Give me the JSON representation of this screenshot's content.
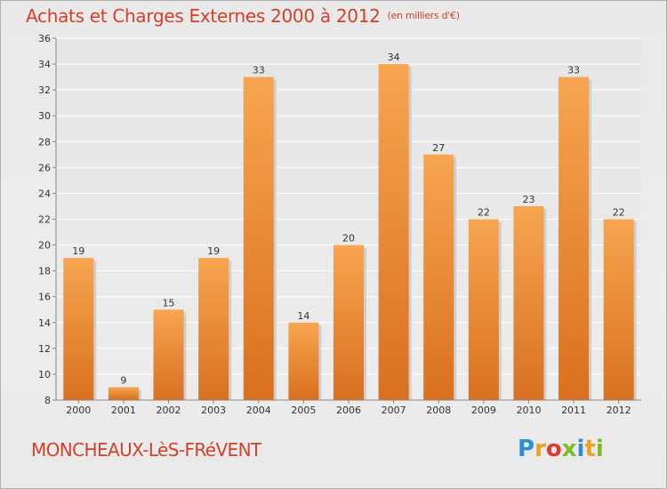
{
  "header": {
    "title": "Achats et Charges Externes 2000 à 2012",
    "unit": "(en milliers d'€)"
  },
  "footer": {
    "commune": "MONCHEAUX-LèS-FRéVENT",
    "logo_letters": [
      "P",
      "r",
      "o",
      "x",
      "i",
      "t",
      "i"
    ],
    "logo_colors": [
      "#2a8fd6",
      "#f0a020",
      "#e03a2a",
      "#7dbb2a",
      "#2a8fd6",
      "#f0a020",
      "#7dbb2a"
    ]
  },
  "chart_data": {
    "type": "bar",
    "title": "Achats et Charges Externes 2000 à 2012",
    "subtitle": "(en milliers d'€)",
    "categories": [
      "2000",
      "2001",
      "2002",
      "2003",
      "2004",
      "2005",
      "2006",
      "2007",
      "2008",
      "2009",
      "2010",
      "2011",
      "2012"
    ],
    "values": [
      19,
      9,
      15,
      19,
      33,
      14,
      20,
      34,
      27,
      22,
      23,
      33,
      22
    ],
    "ylim": [
      8,
      36
    ],
    "yticks": [
      8,
      10,
      12,
      14,
      16,
      18,
      20,
      22,
      24,
      26,
      28,
      30,
      32,
      34,
      36
    ],
    "grid": true,
    "bar_color_top": "#f7a550",
    "bar_color_bottom": "#d97020"
  }
}
